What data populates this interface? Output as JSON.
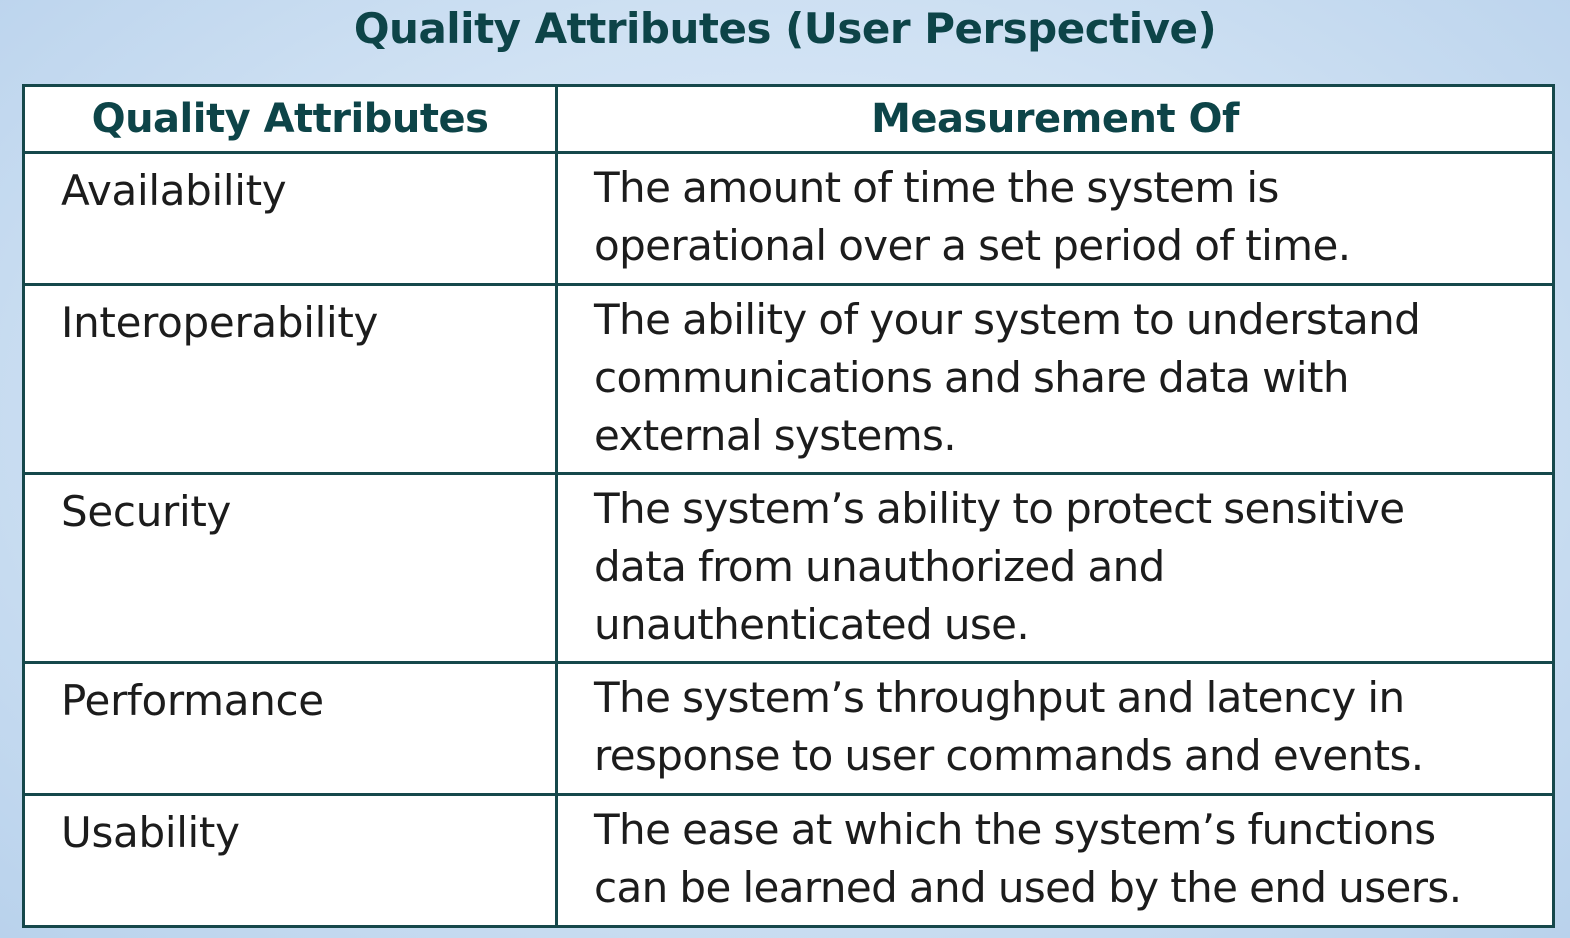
{
  "slide": {
    "title": "Quality Attributes (User Perspective)"
  },
  "table": {
    "headers": {
      "attribute": "Quality Attributes",
      "measurement": "Measurement Of"
    },
    "rows": [
      {
        "attribute": "Availability",
        "measurement_lines": [
          "The amount of time the system is",
          "operational over a set period of time."
        ]
      },
      {
        "attribute": "Interoperability",
        "measurement_lines": [
          "The ability of your system to understand",
          "communications and share data with",
          "external systems."
        ]
      },
      {
        "attribute": "Security",
        "measurement_lines": [
          "The system’s ability to protect sensitive",
          "data from unauthorized and",
          "unauthenticated use."
        ]
      },
      {
        "attribute": "Performance",
        "measurement_lines": [
          "The system’s throughput and latency in",
          "response to user commands and events."
        ]
      },
      {
        "attribute": "Usability",
        "measurement_lines": [
          "The ease at which the system’s functions",
          "can be learned and used by the end users."
        ]
      }
    ]
  }
}
